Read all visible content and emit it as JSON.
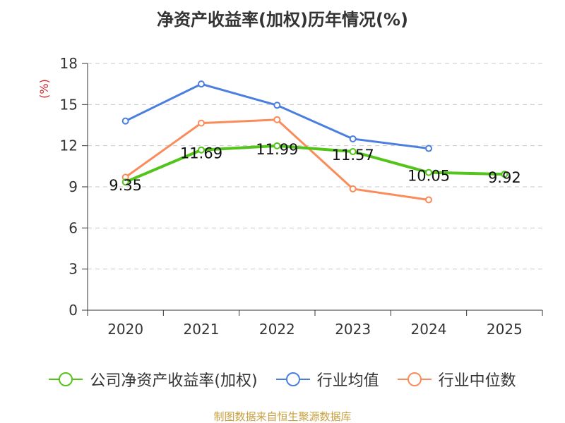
{
  "chart_data": {
    "type": "line",
    "title": "净资产收益率(加权)历年情况(%)",
    "ylabel": "(%)",
    "xlabel": "",
    "categories": [
      "2020",
      "2021",
      "2022",
      "2023",
      "2024",
      "2025"
    ],
    "ylim": [
      0,
      18
    ],
    "yticks": [
      0,
      3,
      6,
      9,
      12,
      15,
      18
    ],
    "grid": true,
    "legend_position": "bottom",
    "series": [
      {
        "name": "公司净资产收益率(加权)",
        "color": "#52c41a",
        "values": [
          9.35,
          11.69,
          11.99,
          11.57,
          10.05,
          9.92
        ],
        "labels": [
          "9.35",
          "11.69",
          "11.99",
          "11.57",
          "10.05",
          "9.92"
        ]
      },
      {
        "name": "行业均值",
        "color": "#4a7fe0",
        "values": [
          13.8,
          16.5,
          14.95,
          12.5,
          11.8,
          null
        ]
      },
      {
        "name": "行业中位数",
        "color": "#fa8c5a",
        "values": [
          9.7,
          13.65,
          13.9,
          8.85,
          8.05,
          null
        ]
      }
    ]
  },
  "footer": {
    "source": "制图数据来自恒生聚源数据库"
  }
}
